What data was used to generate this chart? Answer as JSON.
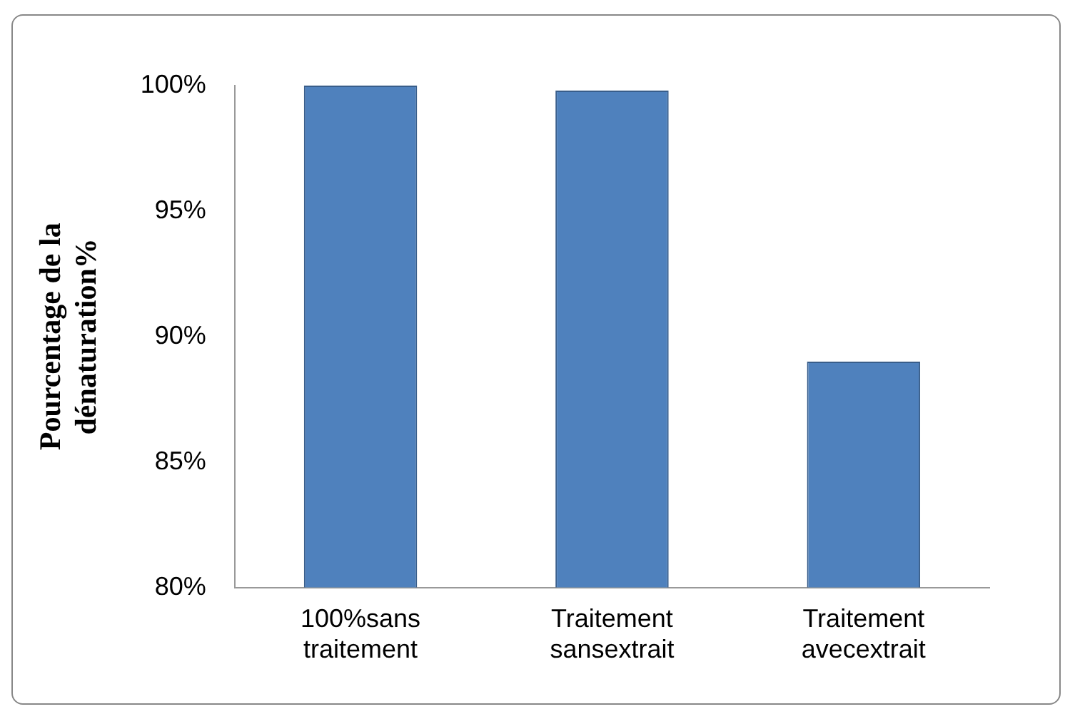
{
  "chart_data": {
    "type": "bar",
    "ylabel": "Pourcentage de la dénaturation%",
    "categories": [
      "100%sans traitement",
      "Traitement sansextrait",
      "Traitement avecextrait"
    ],
    "values": [
      100,
      99.8,
      89
    ],
    "color": "#4f81bd",
    "ylim": [
      80,
      100
    ],
    "yticks": [
      {
        "value": 80,
        "label": "80%"
      },
      {
        "value": 85,
        "label": "85%"
      },
      {
        "value": 90,
        "label": "90%"
      },
      {
        "value": 95,
        "label": "95%"
      },
      {
        "value": 100,
        "label": "100%"
      }
    ],
    "grid": false,
    "legend": false
  }
}
